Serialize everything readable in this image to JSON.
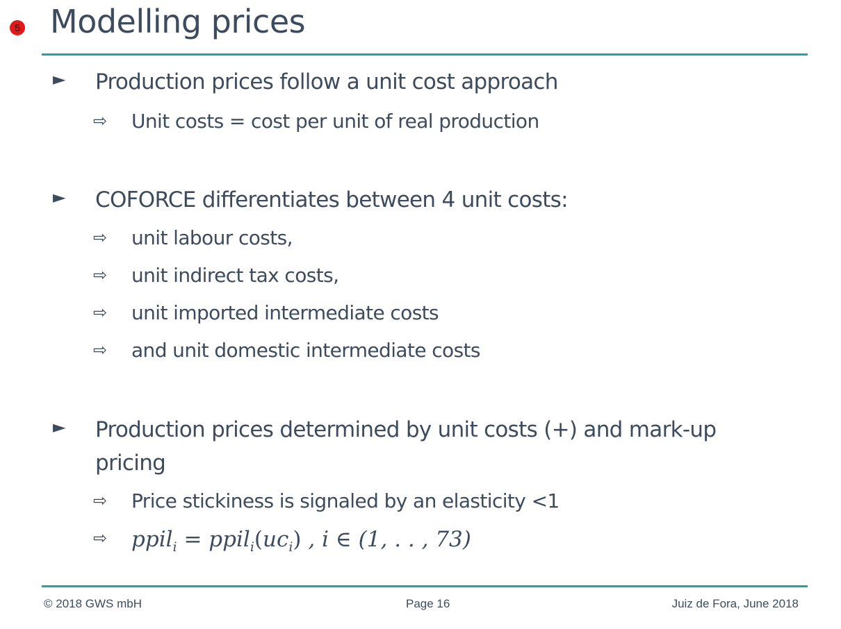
{
  "slide": {
    "number_badge": "5",
    "title": "Modelling prices"
  },
  "bullets": [
    {
      "marker": "►",
      "text": "Production prices follow a unit cost approach",
      "subs": [
        {
          "marker": "⇨",
          "text": "Unit costs = cost per unit of real production"
        }
      ]
    },
    {
      "marker": "►",
      "text": "COFORCE differentiates between 4 unit costs:",
      "subs": [
        {
          "marker": "⇨",
          "text": "unit labour costs,"
        },
        {
          "marker": "⇨",
          "text": "unit indirect tax costs,"
        },
        {
          "marker": "⇨",
          "text": "unit imported intermediate costs"
        },
        {
          "marker": "⇨",
          "text": "and unit domestic intermediate costs"
        }
      ]
    },
    {
      "marker": "►",
      "text_line1": "Production prices determined by unit costs (+) and mark-up",
      "text_line2": "pricing",
      "subs": [
        {
          "marker": "⇨",
          "text": "Price stickiness is signaled by an elasticity <1"
        },
        {
          "marker": "⇨",
          "formula": {
            "lhs": "ppil",
            "sub": "i",
            "eq": " = ",
            "rhs": "ppil",
            "arg": "uc",
            "tail": " ,  i ∈ (1, . . , 73)"
          }
        }
      ]
    }
  ],
  "footer": {
    "left": "© 2018 GWS mbH",
    "center": "Page 16",
    "right": "Juiz de Fora, June 2018"
  }
}
